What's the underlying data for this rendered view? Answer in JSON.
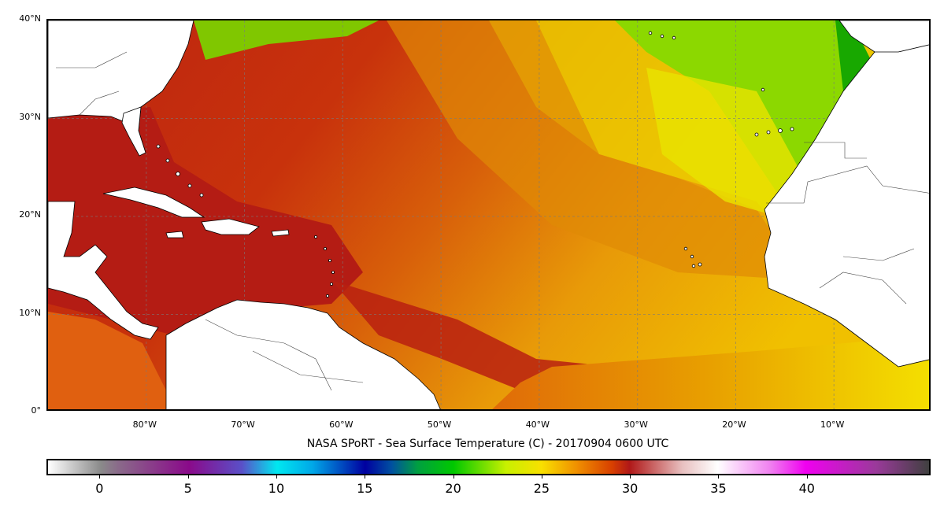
{
  "title": "NASA SPoRT - Sea Surface Temperature (C) - 20170904 0600 UTC",
  "map": {
    "lat_labels": [
      {
        "text": "40°N",
        "value": 40
      },
      {
        "text": "30°N",
        "value": 30
      },
      {
        "text": "20°N",
        "value": 20
      },
      {
        "text": "10°N",
        "value": 10
      },
      {
        "text": "0°",
        "value": 0
      }
    ],
    "lon_labels": [
      {
        "text": "80°W",
        "value": -80
      },
      {
        "text": "70°W",
        "value": -70
      },
      {
        "text": "60°W",
        "value": -60
      },
      {
        "text": "50°W",
        "value": -50
      },
      {
        "text": "40°W",
        "value": -40
      },
      {
        "text": "30°W",
        "value": -30
      },
      {
        "text": "20°W",
        "value": -20
      },
      {
        "text": "10°W",
        "value": -10
      }
    ],
    "extent": {
      "lon_min": -90,
      "lon_max": 0,
      "lat_min": 0,
      "lat_max": 40
    },
    "gridlines": true,
    "land_color": "#ffffff",
    "ocean_colors": {
      "warm": "#c0260e",
      "mid": "#dc6a08",
      "cool_yellow": "#f2e100",
      "cold_green": "#22b400"
    }
  },
  "colorbar": {
    "vmin": -3,
    "vmax": 47,
    "ticks": [
      {
        "text": "0",
        "value": 0
      },
      {
        "text": "5",
        "value": 5
      },
      {
        "text": "10",
        "value": 10
      },
      {
        "text": "15",
        "value": 15
      },
      {
        "text": "20",
        "value": 20
      },
      {
        "text": "25",
        "value": 25
      },
      {
        "text": "30",
        "value": 30
      },
      {
        "text": "35",
        "value": 35
      },
      {
        "text": "40",
        "value": 40
      }
    ],
    "stops": [
      {
        "v": -3,
        "c": "#ffffff"
      },
      {
        "v": 0,
        "c": "#8a8a8a"
      },
      {
        "v": 1,
        "c": "#8a6a8a"
      },
      {
        "v": 5,
        "c": "#8a0a8a"
      },
      {
        "v": 8,
        "c": "#5a50c8"
      },
      {
        "v": 10,
        "c": "#00e8f0"
      },
      {
        "v": 12,
        "c": "#00a8e8"
      },
      {
        "v": 15,
        "c": "#0000a0"
      },
      {
        "v": 16.5,
        "c": "#0050a0"
      },
      {
        "v": 18,
        "c": "#00a040"
      },
      {
        "v": 20,
        "c": "#00c800"
      },
      {
        "v": 23,
        "c": "#c8f000"
      },
      {
        "v": 25,
        "c": "#f8e000"
      },
      {
        "v": 27,
        "c": "#f09000"
      },
      {
        "v": 29,
        "c": "#d84000"
      },
      {
        "v": 30,
        "c": "#b01818"
      },
      {
        "v": 33,
        "c": "#e8c0c0"
      },
      {
        "v": 35,
        "c": "#ffffff"
      },
      {
        "v": 38,
        "c": "#f080f0"
      },
      {
        "v": 40,
        "c": "#f000f0"
      },
      {
        "v": 44,
        "c": "#9a3a9a"
      },
      {
        "v": 47,
        "c": "#404040"
      }
    ]
  }
}
